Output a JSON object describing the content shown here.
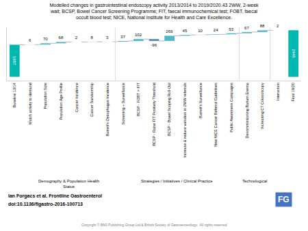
{
  "chart_data": {
    "type": "waterfall",
    "title": "Modelled changes in gastrointestinal endoscopy activity 2013/2014 to 2019/2020.43 2WW, 2-week\nwait; BCSP, Bowel Cancer Screening Programme; FIT, faecal immunochemical test; FOBT, faecal\noccult blood test; NICE, National Institute for Health and Care Excellence.",
    "categories": [
      "Baseline 13/14",
      "Match activity to demand",
      "Population Size",
      "Population Age Profile",
      "Cancer Incidence",
      "Cancer Survivorship",
      "Barrett's Oesophagus Incidence",
      "Screening + Surveillance",
      "BCSP - FOBT > FIT",
      "BCSP - Raise FIT Positivity Threshold",
      "BCSP - Bowel Scoping Roll-Out",
      "Increase & reduce variation in 2WW referrals",
      "Barrett's Surveillance",
      "New NICE Cancer Referral Guidelines",
      "Public Awareness Campaigns",
      "Decommissioning Barium Enema",
      "Increasing CT Colonoscopy",
      "Interaction",
      "Final 19/20"
    ],
    "values": [
      1687,
      6,
      70,
      68,
      2,
      8,
      3,
      37,
      102,
      -96,
      269,
      45,
      10,
      24,
      53,
      67,
      88,
      2,
      2445
    ],
    "colors": [
      "#00b8b0",
      "#4db8c8",
      "#4db8c8",
      "#4db8c8",
      "#4db8c8",
      "#4db8c8",
      "#4db8c8",
      "#4db8c8",
      "#4db8c8",
      "#4a7fc1",
      "#4db8c8",
      "#4db8c8",
      "#4db8c8",
      "#4db8c8",
      "#4db8c8",
      "#4db8c8",
      "#4db8c8",
      "#4db8c8",
      "#00b8b0"
    ],
    "ylim": [
      -200,
      2600
    ],
    "tick_labels": "x",
    "grid": false,
    "data_labels": true,
    "groups": [
      {
        "label": "Demography & Population Health\nStatus",
        "x_start": 1,
        "x_end": 6
      },
      {
        "label": "Strategies / Initiatives / Clinical Practice",
        "x_start": 7,
        "x_end": 14
      },
      {
        "label": "Technological",
        "x_start": 15,
        "x_end": 16
      }
    ],
    "footer": {
      "author": "Ian Forgacs et al. Frontline Gastroenterol",
      "doi": "doi:10.1136/flgastro-2016-100713",
      "copyright": "Copyright © BMJ Publishing Group Ltd & British Society of Gastroenterology.  All rights reserved"
    },
    "badge": {
      "text": "FG",
      "color": "#4472c4"
    }
  }
}
